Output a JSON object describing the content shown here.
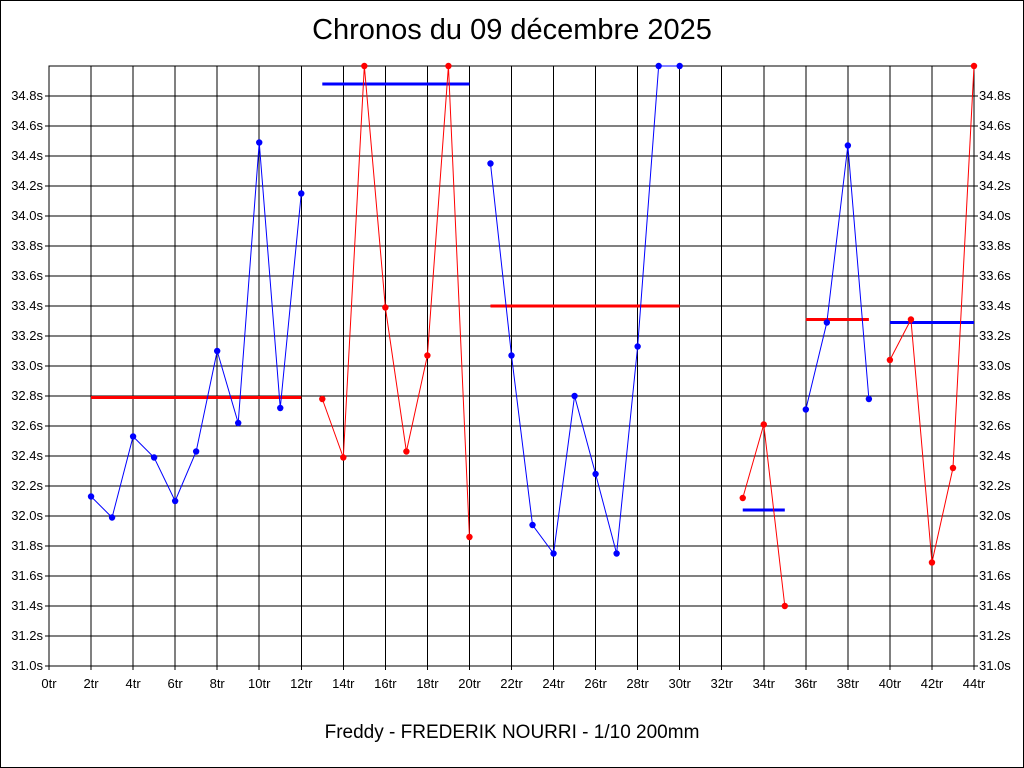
{
  "title": "Chronos du 09 décembre 2025",
  "footer": "Freddy - FREDERIK NOURRI - 1/10 200mm",
  "colors": {
    "blue": "#0000ff",
    "red": "#ff0000",
    "grid": "#000000"
  },
  "chart_data": {
    "type": "line",
    "title": "Chronos du 09 décembre 2025",
    "xlabel": "",
    "ylabel": "",
    "grid": true,
    "xlim": [
      0,
      44
    ],
    "ylim": [
      31.0,
      35.0
    ],
    "x_ticks": [
      "0tr",
      "2tr",
      "4tr",
      "6tr",
      "8tr",
      "10tr",
      "12tr",
      "14tr",
      "16tr",
      "18tr",
      "20tr",
      "22tr",
      "24tr",
      "26tr",
      "28tr",
      "30tr",
      "32tr",
      "34tr",
      "36tr",
      "38tr",
      "40tr",
      "42tr",
      "44tr"
    ],
    "y_ticks": [
      "31.0s",
      "31.2s",
      "31.4s",
      "31.6s",
      "31.8s",
      "32.0s",
      "32.2s",
      "32.4s",
      "32.6s",
      "32.8s",
      "33.0s",
      "33.2s",
      "33.4s",
      "33.6s",
      "33.8s",
      "34.0s",
      "34.2s",
      "34.4s",
      "34.6s",
      "34.8s"
    ],
    "series": [
      {
        "color": "#0000ff",
        "points": [
          [
            2,
            32.13
          ],
          [
            3,
            31.99
          ],
          [
            4,
            32.53
          ],
          [
            5,
            32.39
          ],
          [
            6,
            32.1
          ],
          [
            7,
            32.43
          ],
          [
            8,
            33.1
          ],
          [
            9,
            32.62
          ],
          [
            10,
            34.49
          ],
          [
            11,
            32.72
          ],
          [
            12,
            34.15
          ]
        ]
      },
      {
        "color": "#ff0000",
        "points": [
          [
            13,
            32.78
          ],
          [
            14,
            32.39
          ],
          [
            15,
            35.0
          ],
          [
            16,
            33.39
          ],
          [
            17,
            32.43
          ],
          [
            18,
            33.07
          ],
          [
            19,
            35.0
          ],
          [
            20,
            31.86
          ]
        ]
      },
      {
        "color": "#0000ff",
        "points": [
          [
            21,
            34.35
          ],
          [
            22,
            33.07
          ],
          [
            23,
            31.94
          ],
          [
            24,
            31.75
          ],
          [
            25,
            32.8
          ],
          [
            26,
            32.28
          ],
          [
            27,
            31.75
          ],
          [
            28,
            33.13
          ],
          [
            29,
            35.0
          ],
          [
            30,
            35.0
          ]
        ]
      },
      {
        "color": "#ff0000",
        "points": [
          [
            33,
            32.12
          ],
          [
            34,
            32.61
          ],
          [
            35,
            31.4
          ]
        ]
      },
      {
        "color": "#0000ff",
        "points": [
          [
            36,
            32.71
          ],
          [
            37,
            33.29
          ],
          [
            38,
            34.47
          ],
          [
            39,
            32.78
          ]
        ]
      },
      {
        "color": "#ff0000",
        "points": [
          [
            40,
            33.04
          ],
          [
            41,
            33.31
          ],
          [
            42,
            31.69
          ],
          [
            43,
            32.32
          ],
          [
            44,
            35.0
          ]
        ]
      }
    ],
    "averages": [
      {
        "color": "#ff0000",
        "x": [
          2,
          12
        ],
        "y": 32.79
      },
      {
        "color": "#0000ff",
        "x": [
          13,
          20
        ],
        "y": 34.88
      },
      {
        "color": "#ff0000",
        "x": [
          21,
          30
        ],
        "y": 33.4
      },
      {
        "color": "#0000ff",
        "x": [
          33,
          35
        ],
        "y": 32.04
      },
      {
        "color": "#ff0000",
        "x": [
          36,
          39
        ],
        "y": 33.31
      },
      {
        "color": "#0000ff",
        "x": [
          40,
          44
        ],
        "y": 33.29
      }
    ]
  }
}
